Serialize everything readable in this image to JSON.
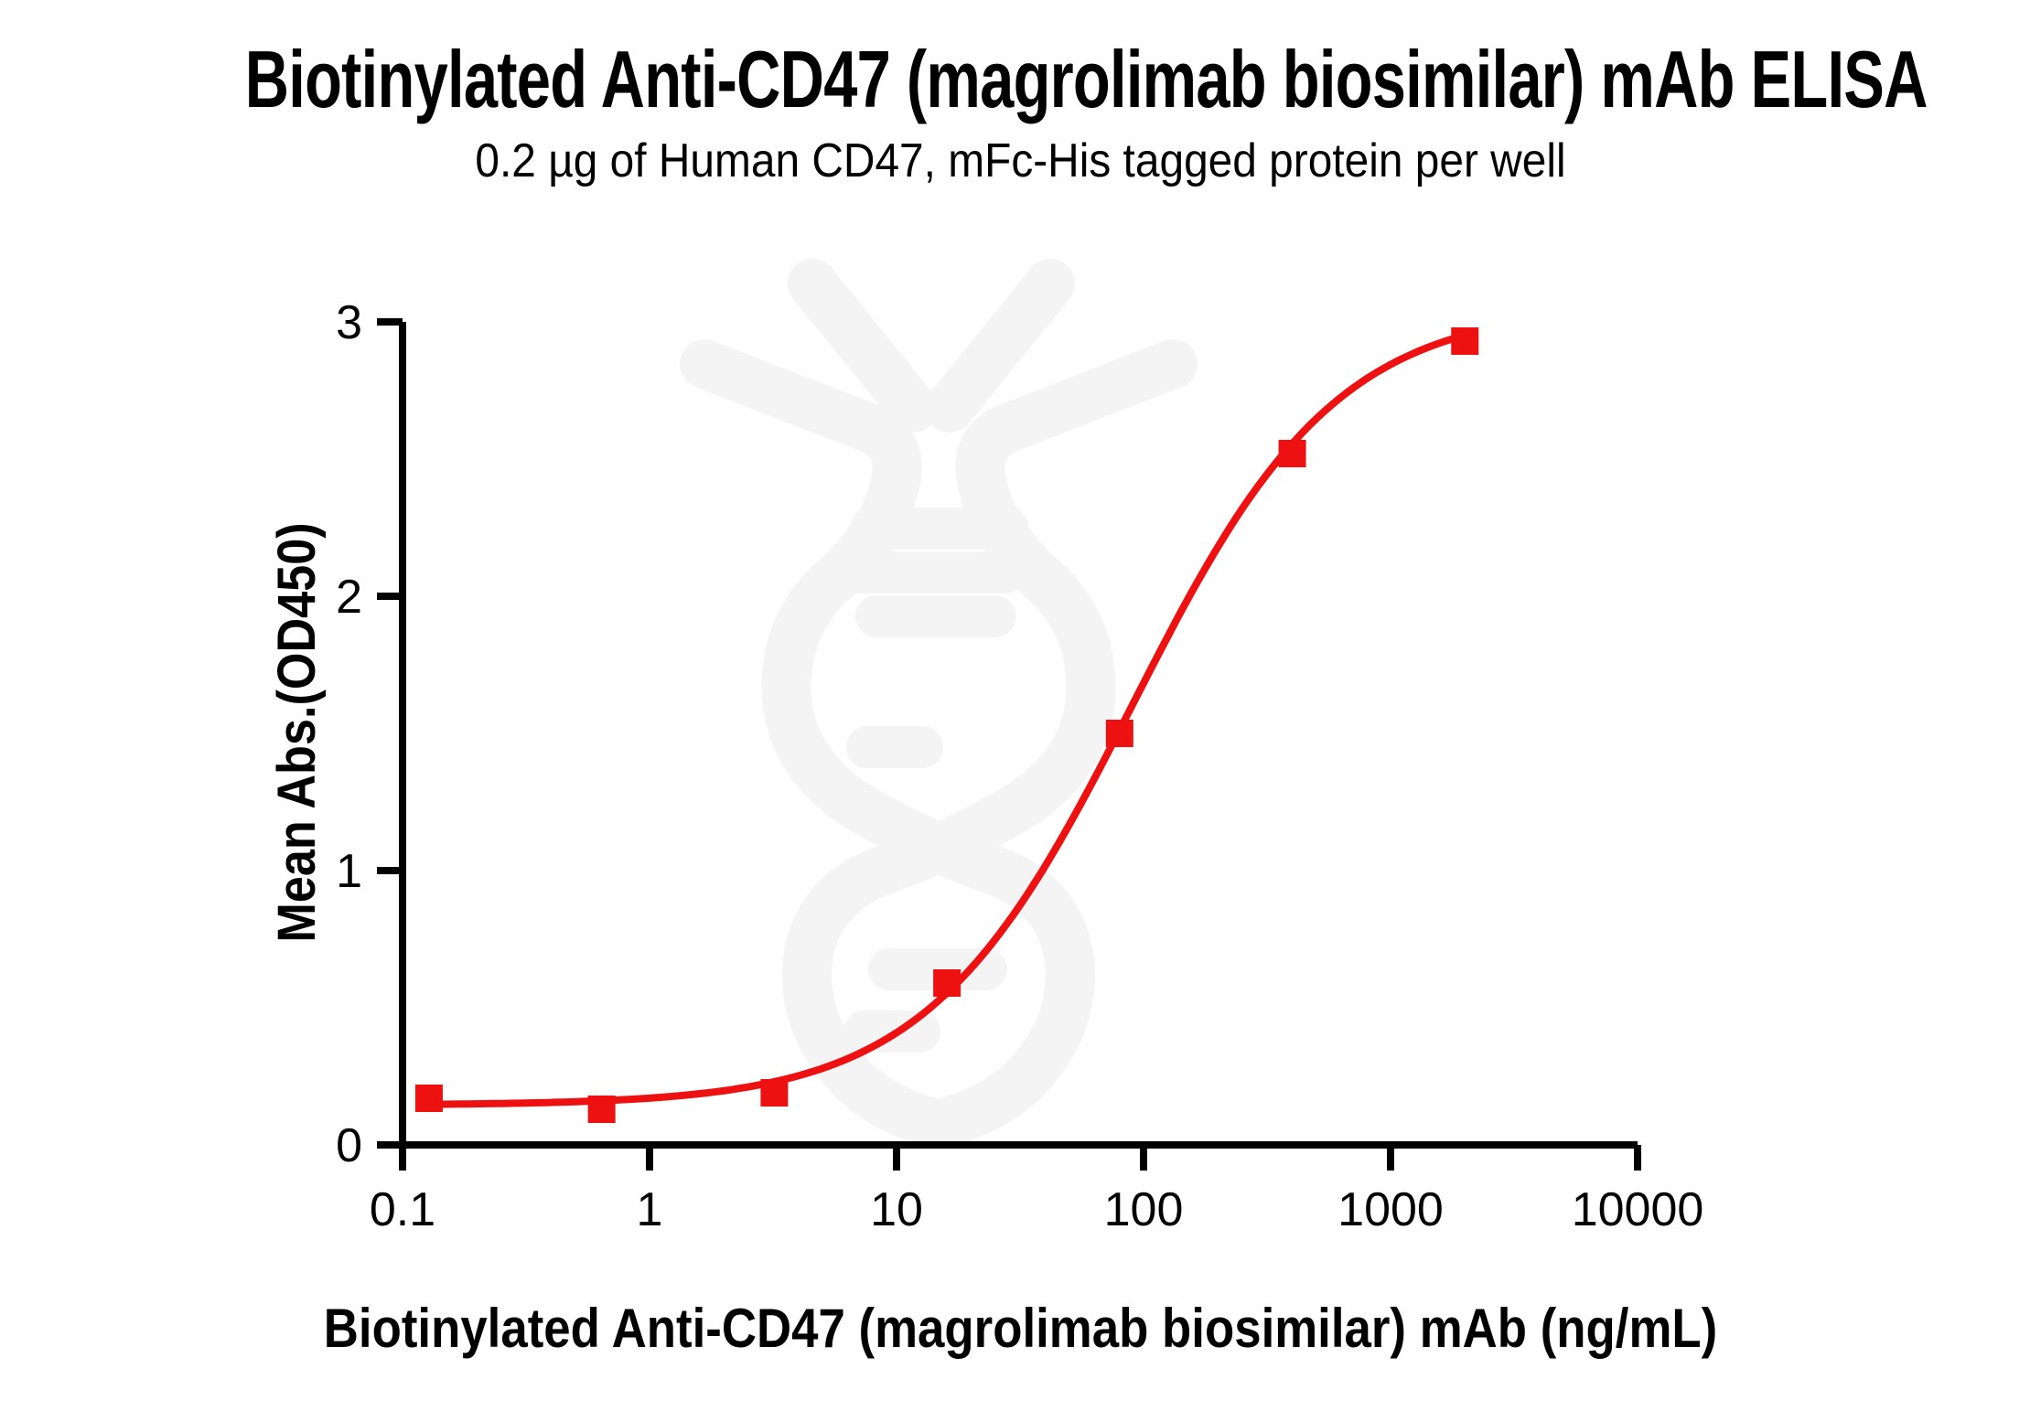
{
  "header": {
    "title": "Biotinylated Anti-CD47 (magrolimab biosimilar) mAb ELISA",
    "subtitle": "0.2 µg of Human CD47, mFc-His tagged protein per well"
  },
  "chart_data": {
    "type": "scatter",
    "title": "Biotinylated Anti-CD47 (magrolimab biosimilar) mAb ELISA",
    "subtitle": "0.2 µg of Human CD47, mFc-His tagged protein per well",
    "xlabel": "Biotinylated Anti-CD47 (magrolimab biosimilar) mAb (ng/mL)",
    "ylabel": "Mean Abs.(OD450)",
    "x_scale": "log10",
    "xlim": [
      0.1,
      10000
    ],
    "ylim": [
      0,
      3
    ],
    "x_ticks": [
      0.1,
      1,
      10,
      100,
      1000,
      10000
    ],
    "x_tick_labels": [
      "0.1",
      "1",
      "10",
      "100",
      "1000",
      "10000"
    ],
    "y_ticks": [
      0,
      1,
      2,
      3
    ],
    "grid": false,
    "legend": "none",
    "series": [
      {
        "name": "Biotinylated Anti-CD47 (magrolimab biosimilar) mAb",
        "marker": "filled-square",
        "color": "#EE1111",
        "points": [
          {
            "x": 0.128,
            "y": 0.17
          },
          {
            "x": 0.64,
            "y": 0.13
          },
          {
            "x": 3.2,
            "y": 0.19
          },
          {
            "x": 16,
            "y": 0.59
          },
          {
            "x": 80,
            "y": 1.5
          },
          {
            "x": 400,
            "y": 2.52
          },
          {
            "x": 2000,
            "y": 2.93
          }
        ],
        "fit": {
          "model": "4PL",
          "bottom": 0.145,
          "top": 3.06,
          "ec50": 90,
          "hill": 1.05,
          "x_range": [
            0.128,
            2000
          ]
        }
      }
    ]
  },
  "colors": {
    "curve_red": "#EE1111",
    "axis_black": "#000000",
    "watermark_gray": "#F4F4F4",
    "background": "#FFFFFF"
  },
  "icons": {
    "watermark": "dna-helix-watermark-icon"
  }
}
